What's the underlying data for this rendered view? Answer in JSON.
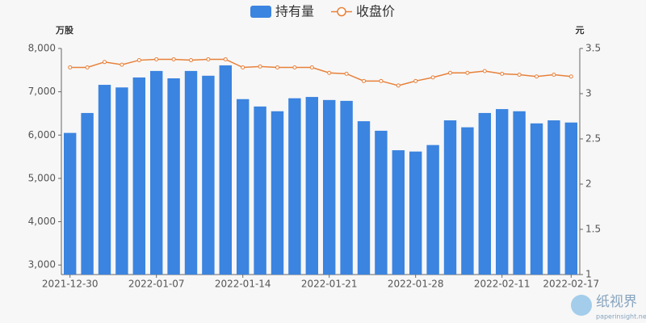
{
  "chart_data": {
    "type": "bar-line",
    "y_label": "万股",
    "y2_label": "元",
    "categories": [
      "2021-12-30",
      null,
      null,
      null,
      null,
      "2022-01-07",
      null,
      null,
      null,
      null,
      "2022-01-14",
      null,
      null,
      null,
      null,
      "2022-01-21",
      null,
      null,
      null,
      null,
      "2022-01-28",
      null,
      null,
      null,
      null,
      "2022-02-11",
      null,
      null,
      null,
      "2022-02-17"
    ],
    "series": [
      {
        "name": "持有量",
        "type": "bar",
        "color": "#3b84e0",
        "values": [
          6050,
          6510,
          7160,
          7100,
          7330,
          7480,
          7310,
          7480,
          7370,
          7610,
          6830,
          6660,
          6550,
          6850,
          6880,
          6810,
          6790,
          6320,
          6100,
          5650,
          5620,
          5770,
          6340,
          6180,
          6510,
          6600,
          6550,
          6270,
          6340,
          6290
        ]
      },
      {
        "name": "收盘价",
        "type": "line",
        "axis": "y2",
        "color": "#e8813a",
        "values": [
          3.29,
          3.29,
          3.35,
          3.32,
          3.37,
          3.38,
          3.38,
          3.37,
          3.38,
          3.38,
          3.29,
          3.3,
          3.29,
          3.29,
          3.29,
          3.23,
          3.22,
          3.14,
          3.14,
          3.09,
          3.14,
          3.18,
          3.23,
          3.23,
          3.25,
          3.22,
          3.21,
          3.19,
          3.21,
          3.19
        ]
      }
    ],
    "ylim": [
      2780,
      8000
    ],
    "yticks": [
      {
        "value": 3000,
        "label": "3,000"
      },
      {
        "value": 4000,
        "label": "4,000"
      },
      {
        "value": 5000,
        "label": "5,000"
      },
      {
        "value": 6000,
        "label": "6,000"
      },
      {
        "value": 7000,
        "label": "7,000"
      },
      {
        "value": 8000,
        "label": "8,000"
      }
    ],
    "y2lim": [
      1,
      3.5
    ],
    "y2ticks": [
      1,
      1.5,
      2,
      2.5,
      3,
      3.5
    ],
    "grid": false
  },
  "watermark": {
    "brand": "纸视界",
    "site": "paperinsight.net"
  }
}
